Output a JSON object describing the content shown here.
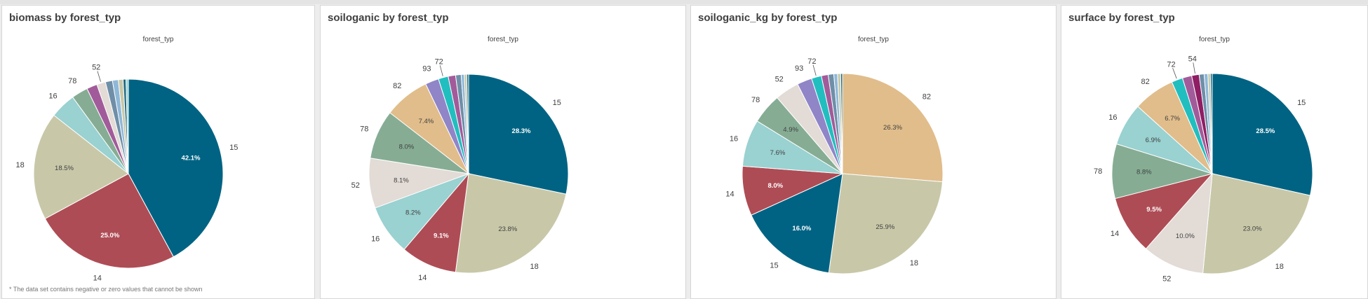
{
  "colors": {
    "15": "#006383",
    "18": "#c8c8a9",
    "14": "#ae4c55",
    "16": "#9ad1d1",
    "52": "#e2dbd6",
    "78": "#86ad94",
    "82": "#e1bd8b",
    "93": "#8f85c7",
    "72": "#21bebf",
    "54": "#8f1e64",
    "tail": [
      "#a25b9a",
      "#6f8fa8",
      "#8fb8d8",
      "#c8c8a9",
      "#1e6b83",
      "#9ad1d1"
    ]
  },
  "footnote": "* The data set contains negative or zero values that cannot be shown",
  "charts": [
    {
      "title": "biomass by forest_typ",
      "legend_title": "forest_typ",
      "chart_data": {
        "type": "pie",
        "title": "biomass by forest_typ",
        "legend_title": "forest_typ",
        "slices": [
          {
            "label": "15",
            "value": 42.1,
            "pct_label": "42.1%"
          },
          {
            "label": "14",
            "value": 25.0,
            "pct_label": "25.0%"
          },
          {
            "label": "18",
            "value": 18.5,
            "pct_label": "18.5%"
          },
          {
            "label": "16",
            "value": 4.4,
            "pct_label": ""
          },
          {
            "label": "78",
            "value": 2.8,
            "pct_label": ""
          },
          {
            "label": "",
            "value": 1.8,
            "pct_label": ""
          },
          {
            "label": "52",
            "value": 1.5,
            "pct_label": ""
          },
          {
            "label": "",
            "value": 1.2,
            "pct_label": ""
          },
          {
            "label": "",
            "value": 1.0,
            "pct_label": ""
          },
          {
            "label": "",
            "value": 0.8,
            "pct_label": ""
          },
          {
            "label": "",
            "value": 0.5,
            "pct_label": ""
          },
          {
            "label": "",
            "value": 0.4,
            "pct_label": ""
          }
        ]
      }
    },
    {
      "title": "soiloganic by forest_typ",
      "legend_title": "forest_typ",
      "chart_data": {
        "type": "pie",
        "title": "soiloganic by forest_typ",
        "legend_title": "forest_typ",
        "slices": [
          {
            "label": "15",
            "value": 28.3,
            "pct_label": "28.3%"
          },
          {
            "label": "18",
            "value": 23.8,
            "pct_label": "23.8%"
          },
          {
            "label": "14",
            "value": 9.1,
            "pct_label": "9.1%"
          },
          {
            "label": "16",
            "value": 8.2,
            "pct_label": "8.2%"
          },
          {
            "label": "52",
            "value": 8.1,
            "pct_label": "8.1%"
          },
          {
            "label": "78",
            "value": 8.0,
            "pct_label": "8.0%"
          },
          {
            "label": "82",
            "value": 7.4,
            "pct_label": "7.4%"
          },
          {
            "label": "93",
            "value": 2.2,
            "pct_label": ""
          },
          {
            "label": "72",
            "value": 1.6,
            "pct_label": ""
          },
          {
            "label": "",
            "value": 1.2,
            "pct_label": ""
          },
          {
            "label": "",
            "value": 0.9,
            "pct_label": ""
          },
          {
            "label": "",
            "value": 0.5,
            "pct_label": ""
          },
          {
            "label": "",
            "value": 0.4,
            "pct_label": ""
          },
          {
            "label": "",
            "value": 0.3,
            "pct_label": ""
          }
        ]
      }
    },
    {
      "title": "soiloganic_kg by forest_typ",
      "legend_title": "forest_typ",
      "chart_data": {
        "type": "pie",
        "title": "soiloganic_kg by forest_typ",
        "legend_title": "forest_typ",
        "slices": [
          {
            "label": "82",
            "value": 26.3,
            "pct_label": "26.3%"
          },
          {
            "label": "18",
            "value": 25.9,
            "pct_label": "25.9%"
          },
          {
            "label": "15",
            "value": 16.0,
            "pct_label": "16.0%"
          },
          {
            "label": "14",
            "value": 8.0,
            "pct_label": "8.0%"
          },
          {
            "label": "16",
            "value": 7.6,
            "pct_label": "7.6%"
          },
          {
            "label": "78",
            "value": 4.9,
            "pct_label": "4.9%"
          },
          {
            "label": "52",
            "value": 3.9,
            "pct_label": ""
          },
          {
            "label": "93",
            "value": 2.4,
            "pct_label": ""
          },
          {
            "label": "72",
            "value": 1.6,
            "pct_label": ""
          },
          {
            "label": "",
            "value": 1.1,
            "pct_label": ""
          },
          {
            "label": "",
            "value": 0.9,
            "pct_label": ""
          },
          {
            "label": "",
            "value": 0.6,
            "pct_label": ""
          },
          {
            "label": "",
            "value": 0.5,
            "pct_label": ""
          },
          {
            "label": "",
            "value": 0.3,
            "pct_label": ""
          }
        ]
      }
    },
    {
      "title": "surface by forest_typ",
      "legend_title": "forest_typ",
      "chart_data": {
        "type": "pie",
        "title": "surface by forest_typ",
        "legend_title": "forest_typ",
        "slices": [
          {
            "label": "15",
            "value": 28.5,
            "pct_label": "28.5%"
          },
          {
            "label": "18",
            "value": 23.0,
            "pct_label": "23.0%"
          },
          {
            "label": "52",
            "value": 10.0,
            "pct_label": "10.0%"
          },
          {
            "label": "14",
            "value": 9.5,
            "pct_label": "9.5%"
          },
          {
            "label": "78",
            "value": 8.8,
            "pct_label": "8.8%"
          },
          {
            "label": "16",
            "value": 6.9,
            "pct_label": "6.9%"
          },
          {
            "label": "82",
            "value": 6.7,
            "pct_label": "6.7%"
          },
          {
            "label": "72",
            "value": 1.8,
            "pct_label": ""
          },
          {
            "label": "",
            "value": 1.5,
            "pct_label": ""
          },
          {
            "label": "54",
            "value": 1.2,
            "pct_label": ""
          },
          {
            "label": "",
            "value": 0.8,
            "pct_label": ""
          },
          {
            "label": "",
            "value": 0.6,
            "pct_label": ""
          },
          {
            "label": "",
            "value": 0.4,
            "pct_label": ""
          },
          {
            "label": "",
            "value": 0.3,
            "pct_label": ""
          }
        ]
      }
    }
  ]
}
